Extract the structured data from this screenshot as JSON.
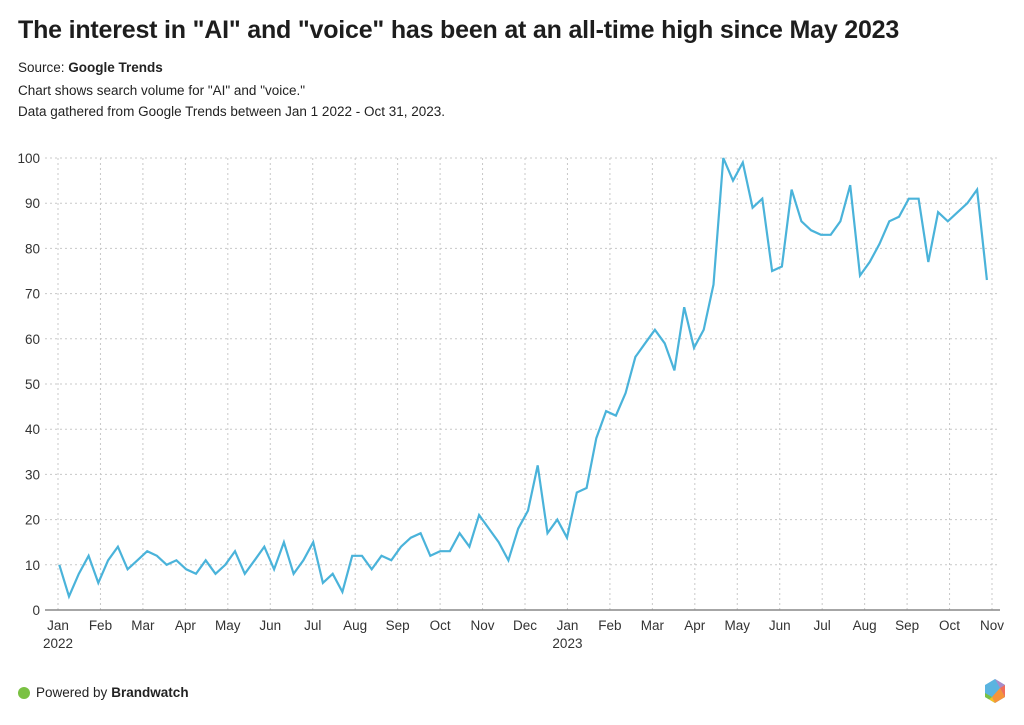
{
  "header": {
    "title": "The interest in \"AI\" and \"voice\" has been at an all-time high since May 2023",
    "source_label": "Source: ",
    "source_name": "Google Trends",
    "description_line1": "Chart shows search volume for \"AI\" and \"voice.\"",
    "description_line2": "Data gathered from Google Trends between Jan 1 2022 - Oct 31, 2023."
  },
  "footer": {
    "powered_by": "Powered by ",
    "brand": "Brandwatch",
    "brand_dot_color": "#7ac143",
    "logo_icon": "brandwatch-hexagon-icon"
  },
  "chart_data": {
    "type": "line",
    "title": "The interest in \"AI\" and \"voice\" has been at an all-time high since May 2023",
    "xlabel": "",
    "ylabel": "",
    "ylim": [
      0,
      100
    ],
    "yticks": [
      "0",
      "10",
      "20",
      "30",
      "40",
      "50",
      "60",
      "70",
      "80",
      "90",
      "100"
    ],
    "xticks": [
      {
        "label": "Jan",
        "sub": "2022"
      },
      {
        "label": "Feb",
        "sub": ""
      },
      {
        "label": "Mar",
        "sub": ""
      },
      {
        "label": "Apr",
        "sub": ""
      },
      {
        "label": "May",
        "sub": ""
      },
      {
        "label": "Jun",
        "sub": ""
      },
      {
        "label": "Jul",
        "sub": ""
      },
      {
        "label": "Aug",
        "sub": ""
      },
      {
        "label": "Sep",
        "sub": ""
      },
      {
        "label": "Oct",
        "sub": ""
      },
      {
        "label": "Nov",
        "sub": ""
      },
      {
        "label": "Dec",
        "sub": ""
      },
      {
        "label": "Jan",
        "sub": "2023"
      },
      {
        "label": "Feb",
        "sub": ""
      },
      {
        "label": "Mar",
        "sub": ""
      },
      {
        "label": "Apr",
        "sub": ""
      },
      {
        "label": "May",
        "sub": ""
      },
      {
        "label": "Jun",
        "sub": ""
      },
      {
        "label": "Jul",
        "sub": ""
      },
      {
        "label": "Aug",
        "sub": ""
      },
      {
        "label": "Sep",
        "sub": ""
      },
      {
        "label": "Oct",
        "sub": ""
      },
      {
        "label": "Nov",
        "sub": ""
      }
    ],
    "x_range_months": [
      0,
      22
    ],
    "grid": true,
    "line_color": "#4ab3da",
    "series": [
      {
        "name": "AI and voice",
        "interval": "weekly",
        "start_week_offset_months": 0.03,
        "week_in_months": 0.23,
        "values": [
          10,
          3,
          8,
          12,
          6,
          11,
          14,
          9,
          11,
          13,
          12,
          10,
          11,
          9,
          8,
          11,
          8,
          10,
          13,
          8,
          11,
          14,
          9,
          15,
          8,
          11,
          15,
          6,
          8,
          4,
          12,
          12,
          9,
          12,
          11,
          14,
          16,
          17,
          12,
          13,
          13,
          17,
          14,
          21,
          18,
          15,
          11,
          18,
          22,
          32,
          17,
          20,
          16,
          26,
          27,
          38,
          44,
          43,
          48,
          56,
          59,
          62,
          59,
          53,
          67,
          58,
          62,
          72,
          100,
          95,
          99,
          89,
          91,
          75,
          76,
          93,
          86,
          84,
          83,
          83,
          86,
          94,
          74,
          77,
          81,
          86,
          87,
          91,
          91,
          77,
          88,
          86,
          88,
          90,
          93,
          73
        ]
      }
    ]
  }
}
